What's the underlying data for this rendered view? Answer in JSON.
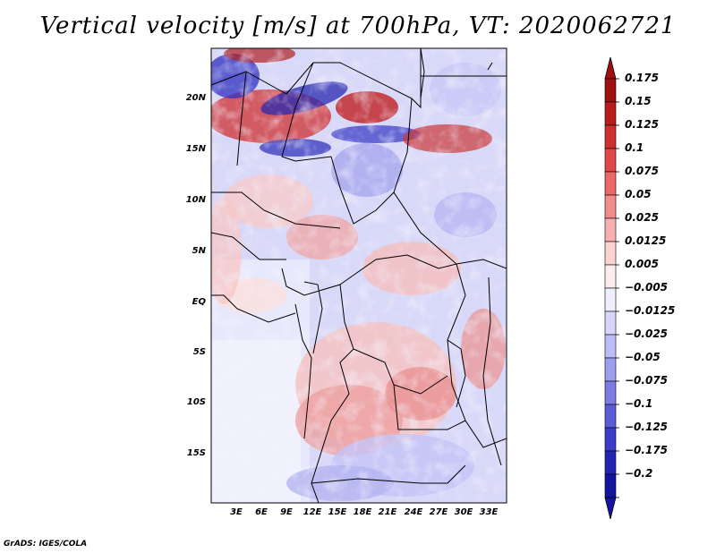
{
  "title": "Vertical velocity [m/s] at 700hPa, VT: 2020062721",
  "credit": "GrADS: IGES/COLA",
  "map": {
    "variable": "Vertical velocity",
    "units": "m/s",
    "level": "700hPa",
    "valid_time": "2020062721",
    "lat_labels": [
      "20N",
      "15N",
      "10N",
      "5N",
      "EQ",
      "5S",
      "10S",
      "15S"
    ],
    "lon_labels": [
      "3E",
      "6E",
      "9E",
      "12E",
      "15E",
      "18E",
      "21E",
      "24E",
      "27E",
      "30E",
      "33E"
    ]
  },
  "colorbar": {
    "labels": [
      "0.175",
      "0.15",
      "0.125",
      "0.1",
      "0.075",
      "0.05",
      "0.025",
      "0.0125",
      "0.005",
      "−0.005",
      "−0.0125",
      "−0.025",
      "−0.05",
      "−0.075",
      "−0.1",
      "−0.125",
      "−0.175",
      "−0.2"
    ],
    "colors": [
      "#a01010",
      "#b81c1c",
      "#cc3030",
      "#de4848",
      "#ea6868",
      "#f08c8c",
      "#f6b0b0",
      "#fad2d2",
      "#fdecec",
      "#eeeefe",
      "#d6d6fb",
      "#bcbcf6",
      "#9e9eef",
      "#7c7ce4",
      "#5c5cd8",
      "#3c3cc8",
      "#2424b4",
      "#14149e"
    ]
  }
}
